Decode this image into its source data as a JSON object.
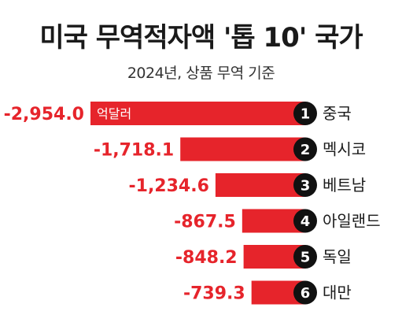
{
  "title": "미국 무역적자액 '톱 10' 국가",
  "subtitle": "2024년, 상품 무역 기준",
  "chart_data": {
    "type": "bar",
    "orientation": "horizontal",
    "title": "미국 무역적자액 '톱 10' 국가",
    "subtitle": "2024년, 상품 무역 기준",
    "unit_label": "억달러",
    "categories": [
      "중국",
      "멕시코",
      "베트남",
      "아일랜드",
      "독일",
      "대만"
    ],
    "ranks": [
      "1",
      "2",
      "3",
      "4",
      "5",
      "6"
    ],
    "value_labels": [
      "-2,954.0",
      "-1,718.1",
      "-1,234.6",
      "-867.5",
      "-848.2",
      "-739.3"
    ],
    "values": [
      -2954.0,
      -1718.1,
      -1234.6,
      -867.5,
      -848.2,
      -739.3
    ],
    "bar_color": "#e6242b",
    "label_color": "#e6242b"
  }
}
